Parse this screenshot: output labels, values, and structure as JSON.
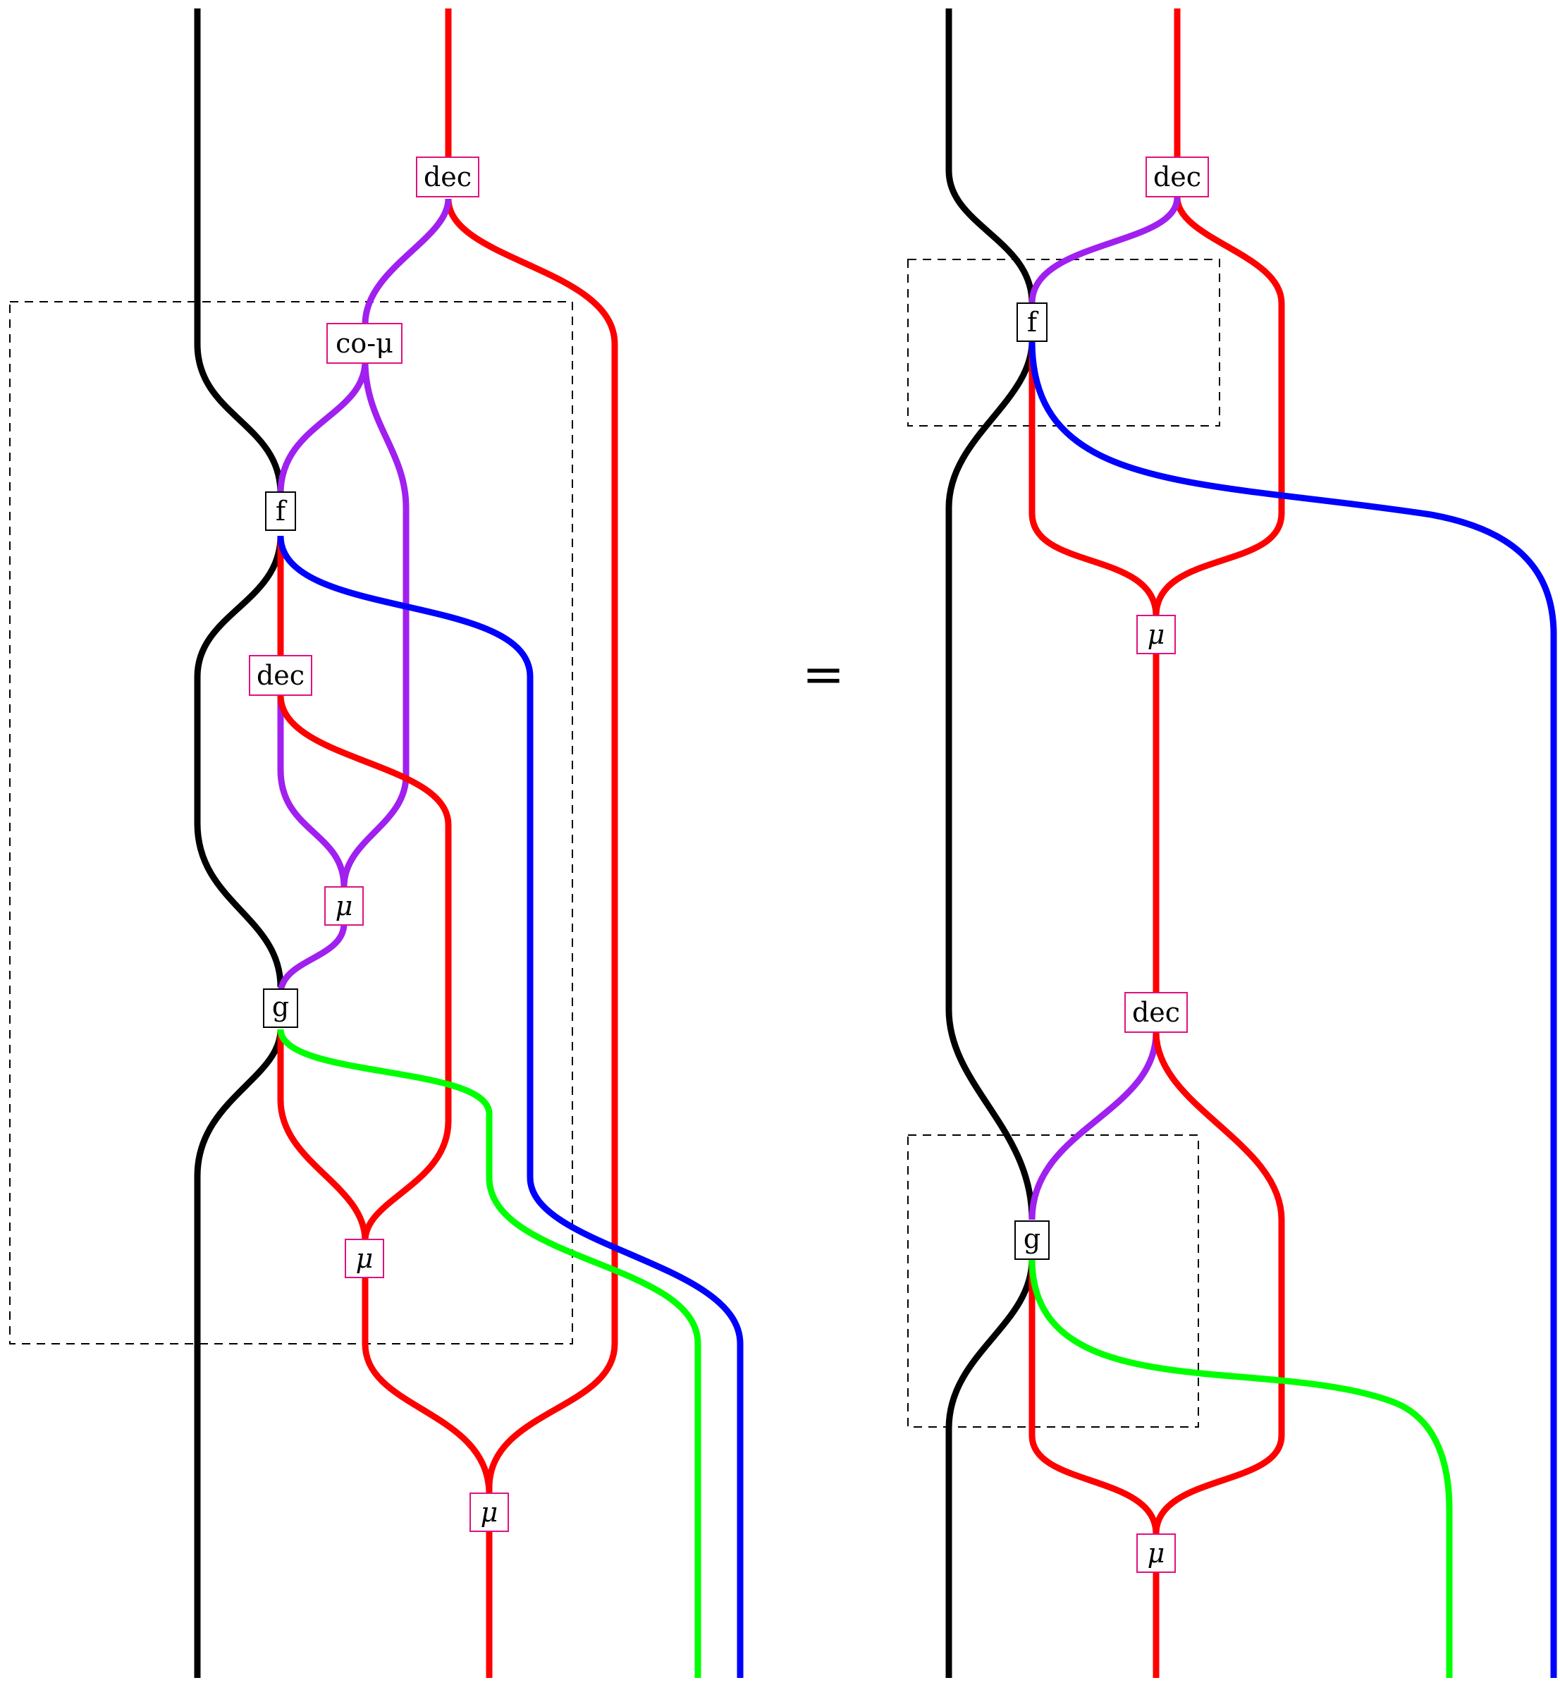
{
  "diagram": {
    "relation": "=",
    "colors": {
      "black": "#000000",
      "red": "#ff0000",
      "purple": "#a020f0",
      "blue": "#0000ff",
      "green": "#00ff00",
      "node_border_pink": "#e0117f",
      "node_border_black": "#000000"
    },
    "left": {
      "nodes": [
        {
          "id": "L-dec1",
          "label": "dec",
          "kind": "pink"
        },
        {
          "id": "L-comu",
          "label": "co-μ",
          "kind": "pink"
        },
        {
          "id": "L-f",
          "label": "f",
          "kind": "black"
        },
        {
          "id": "L-dec2",
          "label": "dec",
          "kind": "pink"
        },
        {
          "id": "L-mu1",
          "label": "μ",
          "kind": "pink"
        },
        {
          "id": "L-g",
          "label": "g",
          "kind": "black"
        },
        {
          "id": "L-mu2",
          "label": "μ",
          "kind": "pink"
        },
        {
          "id": "L-mu3",
          "label": "μ",
          "kind": "pink"
        }
      ]
    },
    "right": {
      "nodes": [
        {
          "id": "R-dec1",
          "label": "dec",
          "kind": "pink"
        },
        {
          "id": "R-f",
          "label": "f",
          "kind": "black"
        },
        {
          "id": "R-mu1",
          "label": "μ",
          "kind": "pink"
        },
        {
          "id": "R-dec2",
          "label": "dec",
          "kind": "pink"
        },
        {
          "id": "R-g",
          "label": "g",
          "kind": "black"
        },
        {
          "id": "R-mu2",
          "label": "μ",
          "kind": "pink"
        }
      ]
    }
  }
}
